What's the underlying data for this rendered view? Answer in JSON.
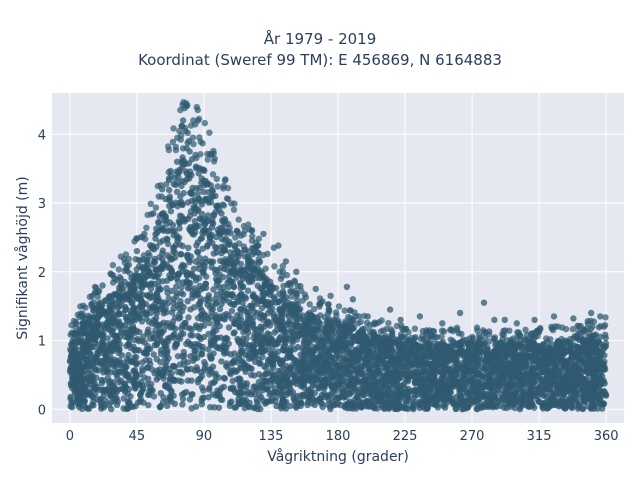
{
  "chart_data": {
    "type": "scatter",
    "title_line1": "År 1979 - 2019",
    "title_line2": "Koordinat (Sweref 99 TM): E 456869, N 6164883",
    "xlabel": "Vågriktning (grader)",
    "ylabel": "Signifikant våghöjd (m)",
    "xlim": [
      -12,
      372
    ],
    "ylim": [
      -0.2,
      4.6
    ],
    "x_ticks": [
      0,
      45,
      90,
      135,
      180,
      225,
      270,
      315,
      360
    ],
    "y_ticks": [
      0,
      1,
      2,
      3,
      4
    ],
    "grid": true,
    "marker_color": "#2f5a70",
    "plot_bg": "#e5e8f0",
    "envelope": [
      {
        "x": 0,
        "upper": 1.1
      },
      {
        "x": 10,
        "upper": 1.3
      },
      {
        "x": 20,
        "upper": 1.55
      },
      {
        "x": 30,
        "upper": 1.75
      },
      {
        "x": 40,
        "upper": 1.95
      },
      {
        "x": 50,
        "upper": 2.2
      },
      {
        "x": 60,
        "upper": 2.8
      },
      {
        "x": 70,
        "upper": 3.4
      },
      {
        "x": 78,
        "upper": 3.85
      },
      {
        "x": 90,
        "upper": 3.5
      },
      {
        "x": 100,
        "upper": 3.0
      },
      {
        "x": 110,
        "upper": 2.5
      },
      {
        "x": 120,
        "upper": 2.2
      },
      {
        "x": 135,
        "upper": 1.9
      },
      {
        "x": 150,
        "upper": 1.55
      },
      {
        "x": 165,
        "upper": 1.35
      },
      {
        "x": 180,
        "upper": 1.25
      },
      {
        "x": 200,
        "upper": 1.1
      },
      {
        "x": 225,
        "upper": 1.0
      },
      {
        "x": 250,
        "upper": 0.95
      },
      {
        "x": 270,
        "upper": 1.0
      },
      {
        "x": 300,
        "upper": 0.95
      },
      {
        "x": 330,
        "upper": 1.0
      },
      {
        "x": 360,
        "upper": 1.1
      }
    ],
    "outliers": [
      {
        "x": 78,
        "y": 4.45
      },
      {
        "x": 77,
        "y": 4.38
      },
      {
        "x": 76,
        "y": 4.2
      },
      {
        "x": 75,
        "y": 4.12
      },
      {
        "x": 80,
        "y": 3.9
      },
      {
        "x": 72,
        "y": 3.6
      },
      {
        "x": 68,
        "y": 3.4
      },
      {
        "x": 95,
        "y": 3.7
      },
      {
        "x": 130,
        "y": 2.55
      },
      {
        "x": 137,
        "y": 2.35
      },
      {
        "x": 140,
        "y": 2.38
      },
      {
        "x": 145,
        "y": 2.15
      },
      {
        "x": 152,
        "y": 2.0
      },
      {
        "x": 165,
        "y": 1.75
      },
      {
        "x": 175,
        "y": 1.65
      },
      {
        "x": 186,
        "y": 1.78
      },
      {
        "x": 190,
        "y": 1.6
      },
      {
        "x": 200,
        "y": 1.35
      },
      {
        "x": 215,
        "y": 1.45
      },
      {
        "x": 222,
        "y": 1.3
      },
      {
        "x": 235,
        "y": 1.35
      },
      {
        "x": 250,
        "y": 1.25
      },
      {
        "x": 262,
        "y": 1.4
      },
      {
        "x": 278,
        "y": 1.55
      },
      {
        "x": 285,
        "y": 1.3
      },
      {
        "x": 292,
        "y": 1.3
      },
      {
        "x": 300,
        "y": 1.25
      },
      {
        "x": 312,
        "y": 1.3
      },
      {
        "x": 325,
        "y": 1.35
      },
      {
        "x": 338,
        "y": 1.32
      },
      {
        "x": 350,
        "y": 1.4
      },
      {
        "x": 356,
        "y": 1.35
      },
      {
        "x": 15,
        "y": 1.65
      },
      {
        "x": 22,
        "y": 1.8
      },
      {
        "x": 30,
        "y": 1.9
      },
      {
        "x": 38,
        "y": 2.05
      },
      {
        "x": 45,
        "y": 2.3
      },
      {
        "x": 50,
        "y": 2.55
      },
      {
        "x": 56,
        "y": 2.85
      },
      {
        "x": 62,
        "y": 3.2
      }
    ]
  }
}
